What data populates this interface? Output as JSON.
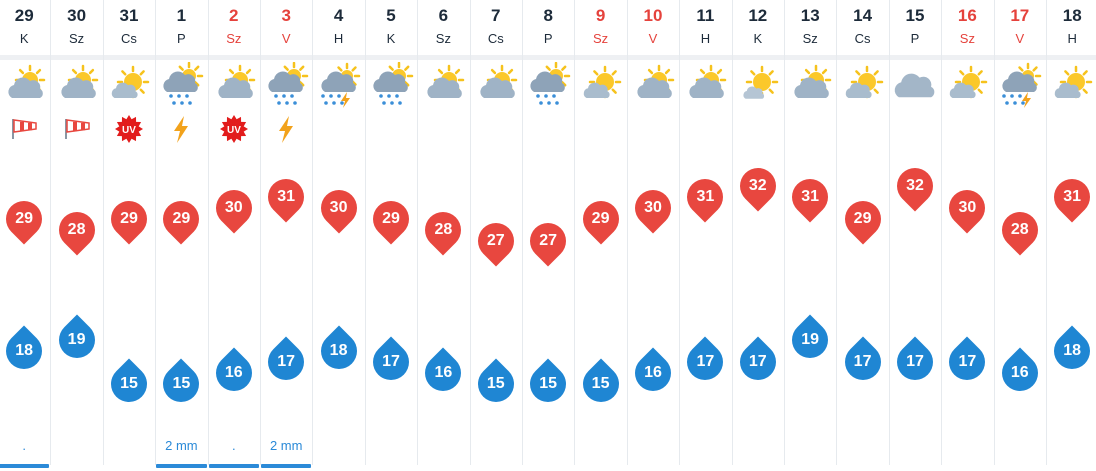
{
  "days": [
    {
      "num": "29",
      "name": "K",
      "weekend": false,
      "icon": "partly-cloudy",
      "special": "wind",
      "high": 29,
      "low": 18,
      "precip": ".",
      "bar": true
    },
    {
      "num": "30",
      "name": "Sz",
      "weekend": false,
      "icon": "partly-cloudy",
      "special": "wind",
      "high": 28,
      "low": 19,
      "precip": "",
      "bar": false
    },
    {
      "num": "31",
      "name": "Cs",
      "weekend": false,
      "icon": "mostly-sunny",
      "special": "uv",
      "high": 29,
      "low": 15,
      "precip": "",
      "bar": false
    },
    {
      "num": "1",
      "name": "P",
      "weekend": false,
      "icon": "cloud-sun-rain",
      "special": "lightning",
      "high": 29,
      "low": 15,
      "precip": "2 mm",
      "bar": true
    },
    {
      "num": "2",
      "name": "Sz",
      "weekend": true,
      "icon": "partly-cloudy",
      "special": "uv",
      "high": 30,
      "low": 16,
      "precip": ".",
      "bar": true
    },
    {
      "num": "3",
      "name": "V",
      "weekend": true,
      "icon": "cloud-sun-rain",
      "special": "lightning",
      "high": 31,
      "low": 17,
      "precip": "2 mm",
      "bar": true
    },
    {
      "num": "4",
      "name": "H",
      "weekend": false,
      "icon": "thunderstorm",
      "special": "",
      "high": 30,
      "low": 18,
      "precip": "",
      "bar": false
    },
    {
      "num": "5",
      "name": "K",
      "weekend": false,
      "icon": "cloud-sun-rain",
      "special": "",
      "high": 29,
      "low": 17,
      "precip": "",
      "bar": false
    },
    {
      "num": "6",
      "name": "Sz",
      "weekend": false,
      "icon": "partly-cloudy",
      "special": "",
      "high": 28,
      "low": 16,
      "precip": "",
      "bar": false
    },
    {
      "num": "7",
      "name": "Cs",
      "weekend": false,
      "icon": "partly-cloudy",
      "special": "",
      "high": 27,
      "low": 15,
      "precip": "",
      "bar": false
    },
    {
      "num": "8",
      "name": "P",
      "weekend": false,
      "icon": "cloud-sun-rain",
      "special": "",
      "high": 27,
      "low": 15,
      "precip": "",
      "bar": false
    },
    {
      "num": "9",
      "name": "Sz",
      "weekend": true,
      "icon": "mostly-sunny",
      "special": "",
      "high": 29,
      "low": 15,
      "precip": "",
      "bar": false
    },
    {
      "num": "10",
      "name": "V",
      "weekend": true,
      "icon": "partly-cloudy",
      "special": "",
      "high": 30,
      "low": 16,
      "precip": "",
      "bar": false
    },
    {
      "num": "11",
      "name": "H",
      "weekend": false,
      "icon": "partly-cloudy",
      "special": "",
      "high": 31,
      "low": 17,
      "precip": "",
      "bar": false
    },
    {
      "num": "12",
      "name": "K",
      "weekend": false,
      "icon": "sunny-cloud",
      "special": "",
      "high": 32,
      "low": 17,
      "precip": "",
      "bar": false
    },
    {
      "num": "13",
      "name": "Sz",
      "weekend": false,
      "icon": "partly-cloudy",
      "special": "",
      "high": 31,
      "low": 19,
      "precip": "",
      "bar": false
    },
    {
      "num": "14",
      "name": "Cs",
      "weekend": false,
      "icon": "mostly-sunny",
      "special": "",
      "high": 29,
      "low": 17,
      "precip": "",
      "bar": false
    },
    {
      "num": "15",
      "name": "P",
      "weekend": false,
      "icon": "cloudy",
      "special": "",
      "high": 32,
      "low": 17,
      "precip": "",
      "bar": false
    },
    {
      "num": "16",
      "name": "Sz",
      "weekend": true,
      "icon": "mostly-sunny",
      "special": "",
      "high": 30,
      "low": 17,
      "precip": "",
      "bar": false
    },
    {
      "num": "17",
      "name": "V",
      "weekend": true,
      "icon": "thunderstorm",
      "special": "",
      "high": 28,
      "low": 16,
      "precip": "",
      "bar": false
    },
    {
      "num": "18",
      "name": "H",
      "weekend": false,
      "icon": "mostly-sunny",
      "special": "",
      "high": 31,
      "low": 18,
      "precip": "",
      "bar": false
    }
  ],
  "colors": {
    "high": "#e8473f",
    "low": "#1f86d3",
    "weekend": "#e5423c",
    "text": "#1d2b3a",
    "precip": "#2b8ad8"
  }
}
